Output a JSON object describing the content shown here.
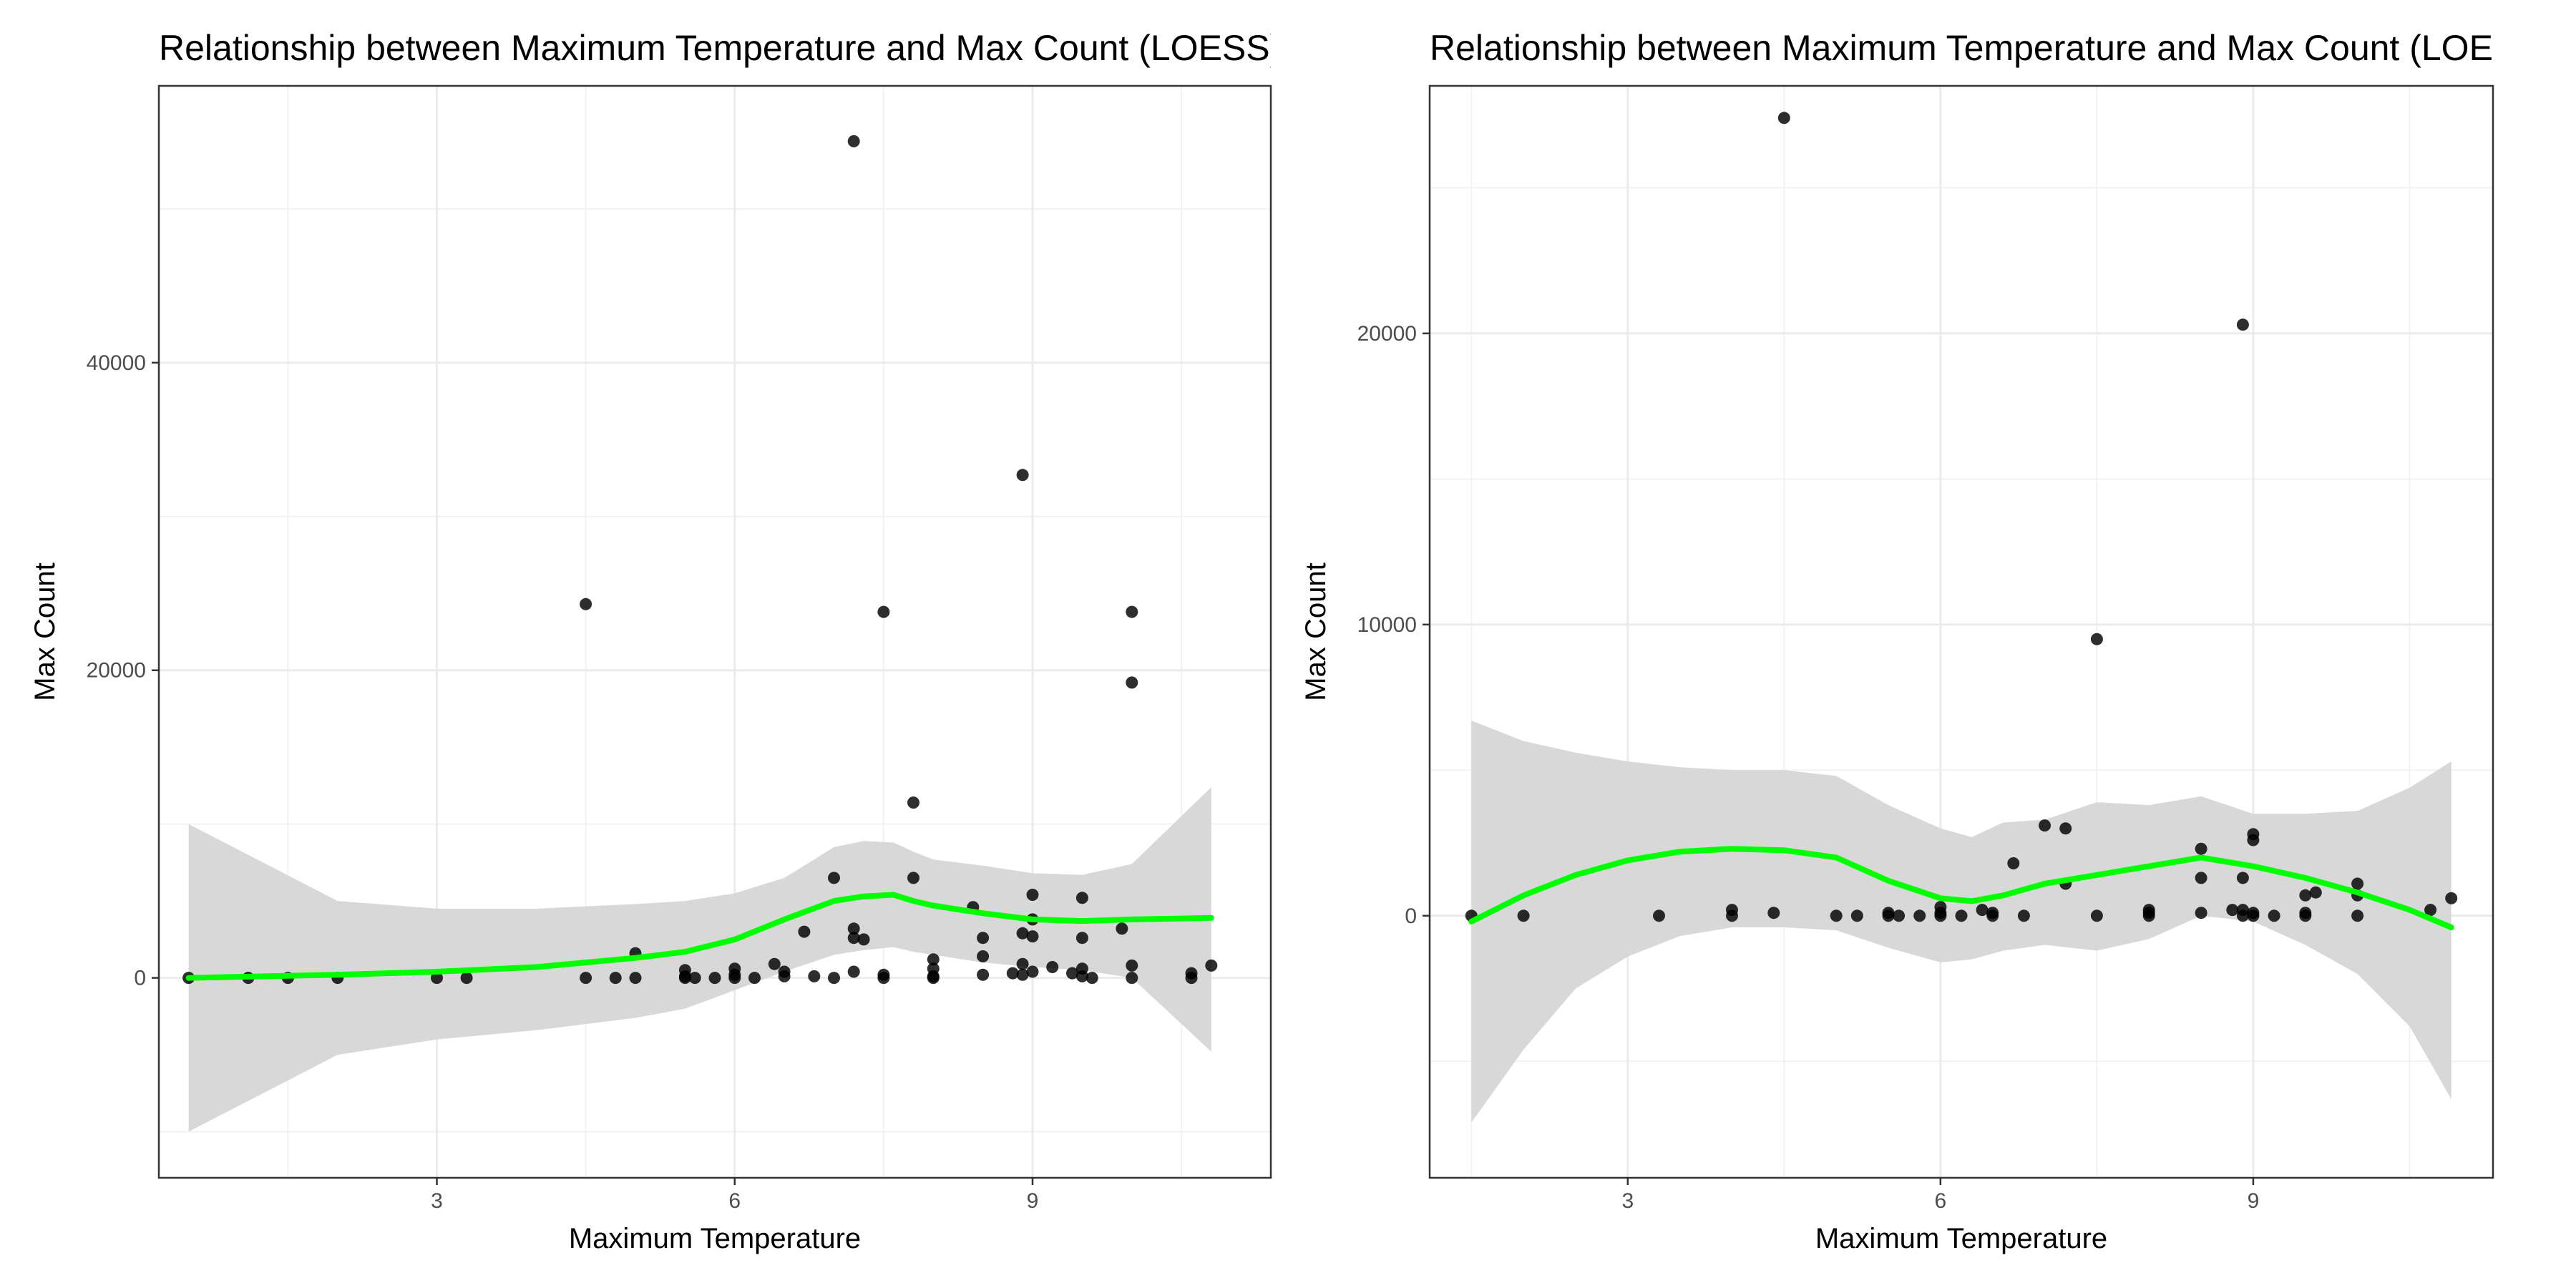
{
  "chart_data": [
    {
      "type": "scatter",
      "title": "Relationship between Maximum Temperature and Max Count (LOESS)",
      "xlabel": "Maximum Temperature",
      "ylabel": "Max Count",
      "xlim": [
        0.2,
        11.4
      ],
      "ylim": [
        -13000,
        58000
      ],
      "xticks": [
        3,
        6,
        9
      ],
      "yticks": [
        0,
        20000,
        40000
      ],
      "grid": true,
      "points": {
        "x": [
          0.5,
          1.1,
          1.5,
          2.0,
          3.0,
          3.3,
          4.5,
          4.5,
          4.8,
          5.0,
          5.0,
          5.5,
          5.5,
          5.5,
          5.6,
          5.8,
          6.0,
          6.0,
          6.0,
          6.2,
          6.4,
          6.5,
          6.5,
          6.7,
          6.8,
          7.0,
          7.0,
          7.2,
          7.2,
          7.2,
          7.2,
          7.3,
          7.5,
          7.5,
          7.5,
          7.8,
          7.8,
          8.0,
          8.0,
          8.0,
          8.0,
          8.4,
          8.5,
          8.5,
          8.5,
          8.8,
          8.9,
          8.9,
          8.9,
          8.9,
          9.0,
          9.0,
          9.0,
          9.0,
          9.2,
          9.4,
          9.5,
          9.5,
          9.5,
          9.5,
          9.6,
          9.9,
          10.0,
          10.0,
          10.0,
          10.0,
          10.6,
          10.6,
          10.8
        ],
        "y": [
          0,
          0,
          0,
          0,
          0,
          0,
          24300,
          0,
          0,
          1600,
          0,
          500,
          100,
          0,
          0,
          0,
          600,
          0,
          200,
          0,
          900,
          400,
          100,
          3000,
          100,
          6500,
          0,
          3200,
          2600,
          400,
          54400,
          2500,
          23800,
          200,
          0,
          11400,
          6500,
          1200,
          600,
          0,
          100,
          4600,
          2600,
          1400,
          200,
          300,
          32700,
          2900,
          900,
          200,
          5400,
          3800,
          2700,
          400,
          700,
          300,
          5200,
          2600,
          600,
          100,
          0,
          3200,
          23800,
          19200,
          800,
          0,
          300,
          0,
          800
        ]
      },
      "smooth": {
        "x": [
          0.5,
          2.0,
          3.0,
          4.0,
          5.0,
          5.5,
          6.0,
          6.5,
          7.0,
          7.3,
          7.6,
          7.8,
          8.0,
          8.5,
          9.0,
          9.5,
          10.0,
          10.8
        ],
        "y": [
          0,
          200,
          400,
          700,
          1300,
          1700,
          2500,
          3800,
          5000,
          5300,
          5400,
          5000,
          4700,
          4200,
          3800,
          3700,
          3800,
          3900
        ],
        "lower": [
          -10000,
          -5000,
          -4000,
          -3400,
          -2600,
          -2000,
          -800,
          400,
          1500,
          1800,
          2000,
          1700,
          1500,
          1000,
          700,
          500,
          0,
          -4800
        ],
        "upper": [
          10000,
          5000,
          4500,
          4500,
          4800,
          5000,
          5500,
          6500,
          8500,
          8900,
          8800,
          8200,
          7700,
          7300,
          6800,
          6700,
          7400,
          12400
        ]
      },
      "colors": {
        "points": "#000000",
        "smooth": "#00ff00",
        "band": "#d6d6d6"
      }
    },
    {
      "type": "scatter",
      "title": "Relationship between Maximum Temperature and Max Count (LOESS)",
      "xlabel": "Maximum Temperature",
      "ylabel": "Max Count",
      "xlim": [
        1.1,
        11.3
      ],
      "ylim": [
        -9000,
        28500
      ],
      "xticks": [
        3,
        6,
        9
      ],
      "yticks": [
        0,
        10000,
        20000
      ],
      "grid": true,
      "points": {
        "x": [
          1.5,
          2.0,
          3.3,
          4.0,
          4.0,
          4.4,
          4.5,
          5.0,
          5.2,
          5.5,
          5.5,
          5.6,
          5.8,
          6.0,
          6.0,
          6.0,
          6.2,
          6.4,
          6.5,
          6.5,
          6.7,
          6.8,
          7.0,
          7.2,
          7.2,
          7.5,
          7.5,
          8.0,
          8.0,
          8.0,
          8.5,
          8.5,
          8.5,
          8.8,
          8.9,
          8.9,
          8.9,
          8.9,
          9.0,
          9.0,
          9.0,
          9.0,
          9.2,
          9.5,
          9.5,
          9.5,
          9.6,
          10.0,
          10.0,
          10.0,
          10.7,
          10.9
        ],
        "y": [
          0,
          0,
          0,
          200,
          0,
          100,
          27400,
          0,
          0,
          0,
          100,
          0,
          0,
          100,
          300,
          0,
          0,
          200,
          0,
          100,
          1800,
          0,
          3100,
          3000,
          1100,
          9500,
          0,
          200,
          0,
          100,
          2300,
          1300,
          100,
          200,
          20300,
          1300,
          200,
          0,
          2800,
          2600,
          100,
          0,
          0,
          700,
          0,
          100,
          800,
          1100,
          700,
          0,
          200,
          600
        ]
      },
      "smooth": {
        "x": [
          1.5,
          2.0,
          2.5,
          3.0,
          3.5,
          4.0,
          4.5,
          5.0,
          5.5,
          6.0,
          6.3,
          6.6,
          7.0,
          7.5,
          8.0,
          8.5,
          9.0,
          9.5,
          10.0,
          10.5,
          10.9
        ],
        "y": [
          -200,
          700,
          1400,
          1900,
          2200,
          2300,
          2250,
          2000,
          1200,
          600,
          500,
          700,
          1100,
          1400,
          1700,
          2000,
          1700,
          1300,
          800,
          200,
          -400
        ],
        "lower": [
          -7100,
          -4600,
          -2500,
          -1400,
          -700,
          -400,
          -400,
          -500,
          -1100,
          -1600,
          -1500,
          -1200,
          -1000,
          -1200,
          -800,
          0,
          -200,
          -1000,
          -2000,
          -3800,
          -6300
        ],
        "upper": [
          6700,
          6000,
          5600,
          5300,
          5100,
          5000,
          5000,
          4800,
          3800,
          3000,
          2700,
          3200,
          3300,
          3900,
          3800,
          4100,
          3500,
          3500,
          3600,
          4400,
          5300
        ]
      },
      "colors": {
        "points": "#000000",
        "smooth": "#00ff00",
        "band": "#d6d6d6"
      }
    }
  ]
}
